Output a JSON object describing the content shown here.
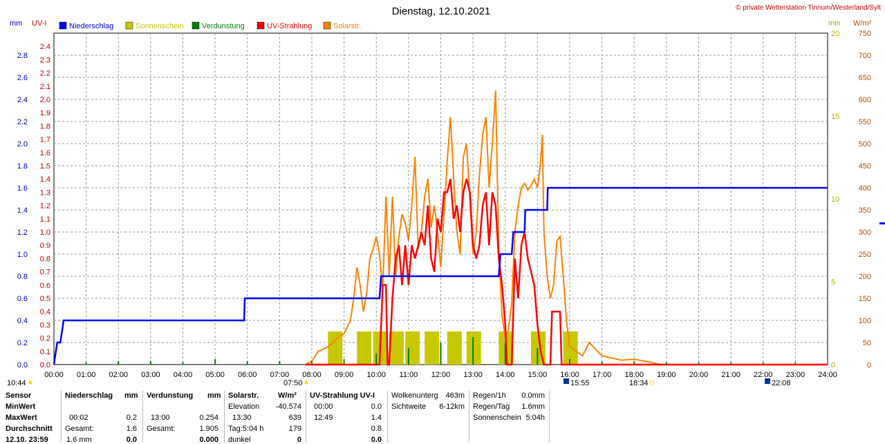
{
  "chart_data": {
    "type": "line",
    "title": "Dienstag, 12.10.2021",
    "copyright": "© private Wetterstation Tinnum/Westerland/Sylt",
    "left_axis_units": [
      "mm",
      "UV-I"
    ],
    "right_axis_units": [
      "min",
      "W/m²"
    ],
    "legend": [
      "Niederschlag",
      "Sonnenschein",
      "Verdunstung",
      "UV-Strahlung",
      "Solarstr."
    ],
    "colors": {
      "Niederschlag": "#0000ff",
      "Sonnenschein": "#c8c800",
      "Verdunstung": "#008000",
      "UV-Strahlung": "#ff0000",
      "Solarstr.": "#ff8000",
      "uv_axis": "#c00000",
      "min_axis": "#c8c800",
      "w_axis": "#b05000"
    },
    "x_ticks": [
      "00:00",
      "01:00",
      "02:00",
      "03:00",
      "04:00",
      "05:00",
      "06:00",
      "07:00",
      "08:00",
      "09:00",
      "10:00",
      "11:00",
      "12:00",
      "13:00",
      "14:00",
      "15:00",
      "16:00",
      "17:00",
      "18:00",
      "19:00",
      "20:00",
      "21:00",
      "22:00",
      "23:00",
      "24:00"
    ],
    "mm_ticks": [
      "0.0",
      "0.2",
      "0.4",
      "0.6",
      "0.8",
      "1.0",
      "1.2",
      "1.4",
      "1.6",
      "1.8",
      "2.0",
      "2.2",
      "2.4",
      "2.6",
      "2.8"
    ],
    "uv_ticks": [
      "0.0",
      "0.1",
      "0.2",
      "0.3",
      "0.4",
      "0.5",
      "0.6",
      "0.7",
      "0.8",
      "0.9",
      "1.0",
      "1.1",
      "1.2",
      "1.3",
      "1.4",
      "1.5",
      "1.6",
      "1.7",
      "1.8",
      "1.9",
      "2.0",
      "2.1",
      "2.2",
      "2.3",
      "2.4"
    ],
    "min_ticks": [
      "0",
      "5",
      "10",
      "15",
      "20"
    ],
    "w_ticks": [
      "0",
      "50",
      "100",
      "150",
      "200",
      "250",
      "300",
      "350",
      "400",
      "450",
      "500",
      "550",
      "600",
      "650",
      "700",
      "750"
    ],
    "x_range_h": [
      0,
      24
    ],
    "mm_range": [
      0,
      3.0
    ],
    "uv_range": [
      0,
      2.5
    ],
    "min_range": [
      0,
      20
    ],
    "w_range": [
      0,
      750
    ],
    "grid": true,
    "niederschlag_mm": [
      [
        0,
        0
      ],
      [
        0.05,
        0.1
      ],
      [
        0.1,
        0.2
      ],
      [
        0.2,
        0.2
      ],
      [
        0.3,
        0.4
      ],
      [
        5.9,
        0.4
      ],
      [
        5.92,
        0.6
      ],
      [
        10.1,
        0.6
      ],
      [
        10.15,
        0.8
      ],
      [
        13.8,
        0.8
      ],
      [
        13.85,
        1.0
      ],
      [
        14.2,
        1.0
      ],
      [
        14.25,
        1.2
      ],
      [
        14.6,
        1.2
      ],
      [
        14.62,
        1.4
      ],
      [
        15.3,
        1.4
      ],
      [
        15.32,
        1.6
      ],
      [
        24,
        1.6
      ]
    ],
    "uv_strahlung": [
      [
        7.8,
        0
      ],
      [
        10.1,
        0
      ],
      [
        10.2,
        0.6
      ],
      [
        10.3,
        0.6
      ],
      [
        10.35,
        0
      ],
      [
        10.4,
        0
      ],
      [
        10.5,
        0.5
      ],
      [
        10.6,
        0.8
      ],
      [
        10.7,
        0.9
      ],
      [
        10.8,
        0.6
      ],
      [
        10.9,
        0.9
      ],
      [
        11.0,
        0.6
      ],
      [
        11.1,
        0.9
      ],
      [
        11.2,
        0.8
      ],
      [
        11.3,
        0.9
      ],
      [
        11.4,
        1.0
      ],
      [
        11.5,
        0.9
      ],
      [
        11.6,
        1.2
      ],
      [
        11.7,
        0.8
      ],
      [
        11.8,
        0.7
      ],
      [
        11.9,
        1.1
      ],
      [
        12.0,
        1.0
      ],
      [
        12.1,
        1.3
      ],
      [
        12.2,
        1.3
      ],
      [
        12.3,
        1.4
      ],
      [
        12.4,
        1.1
      ],
      [
        12.5,
        1.2
      ],
      [
        12.6,
        1.0
      ],
      [
        12.7,
        1.3
      ],
      [
        12.8,
        1.4
      ],
      [
        12.9,
        1.3
      ],
      [
        13.0,
        0.9
      ],
      [
        13.1,
        0.8
      ],
      [
        13.2,
        0.9
      ],
      [
        13.3,
        1.2
      ],
      [
        13.4,
        1.3
      ],
      [
        13.5,
        0.9
      ],
      [
        13.6,
        1.3
      ],
      [
        13.7,
        1.2
      ],
      [
        13.8,
        0.8
      ],
      [
        13.9,
        0.6
      ],
      [
        14.0,
        0.3
      ],
      [
        14.05,
        0
      ],
      [
        14.2,
        0
      ],
      [
        14.3,
        0.8
      ],
      [
        14.4,
        0.5
      ],
      [
        14.5,
        0.9
      ],
      [
        14.6,
        1.0
      ],
      [
        14.7,
        0.8
      ],
      [
        14.8,
        0.7
      ],
      [
        14.9,
        0.6
      ],
      [
        15.0,
        0.3
      ],
      [
        15.1,
        0.1
      ],
      [
        15.2,
        0
      ],
      [
        15.4,
        0
      ],
      [
        15.45,
        0.4
      ],
      [
        15.6,
        0.4
      ],
      [
        15.7,
        0.4
      ],
      [
        15.75,
        0
      ],
      [
        24,
        0
      ]
    ],
    "solarstr_wm2": [
      [
        7.8,
        0
      ],
      [
        8.0,
        8
      ],
      [
        8.2,
        30
      ],
      [
        8.5,
        40
      ],
      [
        8.8,
        60
      ],
      [
        9.0,
        70
      ],
      [
        9.2,
        100
      ],
      [
        9.3,
        150
      ],
      [
        9.4,
        220
      ],
      [
        9.5,
        180
      ],
      [
        9.6,
        120
      ],
      [
        9.7,
        160
      ],
      [
        9.8,
        240
      ],
      [
        9.9,
        260
      ],
      [
        10.0,
        290
      ],
      [
        10.1,
        250
      ],
      [
        10.2,
        170
      ],
      [
        10.3,
        380
      ],
      [
        10.4,
        200
      ],
      [
        10.5,
        380
      ],
      [
        10.6,
        200
      ],
      [
        10.7,
        290
      ],
      [
        10.8,
        340
      ],
      [
        10.9,
        320
      ],
      [
        11.0,
        280
      ],
      [
        11.1,
        360
      ],
      [
        11.2,
        470
      ],
      [
        11.3,
        260
      ],
      [
        11.4,
        300
      ],
      [
        11.5,
        380
      ],
      [
        11.6,
        420
      ],
      [
        11.7,
        310
      ],
      [
        11.8,
        360
      ],
      [
        11.9,
        300
      ],
      [
        12.0,
        220
      ],
      [
        12.1,
        340
      ],
      [
        12.2,
        460
      ],
      [
        12.3,
        560
      ],
      [
        12.4,
        420
      ],
      [
        12.5,
        300
      ],
      [
        12.6,
        250
      ],
      [
        12.7,
        470
      ],
      [
        12.8,
        500
      ],
      [
        12.9,
        380
      ],
      [
        13.0,
        250
      ],
      [
        13.1,
        300
      ],
      [
        13.2,
        430
      ],
      [
        13.3,
        520
      ],
      [
        13.4,
        560
      ],
      [
        13.5,
        400
      ],
      [
        13.6,
        500
      ],
      [
        13.7,
        620
      ],
      [
        13.8,
        260
      ],
      [
        13.9,
        110
      ],
      [
        14.0,
        60
      ],
      [
        14.1,
        80
      ],
      [
        14.2,
        140
      ],
      [
        14.3,
        300
      ],
      [
        14.4,
        360
      ],
      [
        14.5,
        400
      ],
      [
        14.6,
        410
      ],
      [
        14.7,
        395
      ],
      [
        14.8,
        405
      ],
      [
        14.9,
        420
      ],
      [
        15.0,
        400
      ],
      [
        15.1,
        460
      ],
      [
        15.15,
        520
      ],
      [
        15.2,
        300
      ],
      [
        15.3,
        200
      ],
      [
        15.4,
        150
      ],
      [
        15.5,
        180
      ],
      [
        15.6,
        280
      ],
      [
        15.7,
        290
      ],
      [
        15.8,
        200
      ],
      [
        15.9,
        100
      ],
      [
        16.0,
        40
      ],
      [
        16.2,
        30
      ],
      [
        16.4,
        20
      ],
      [
        16.6,
        50
      ],
      [
        16.8,
        35
      ],
      [
        17.0,
        20
      ],
      [
        17.3,
        15
      ],
      [
        17.6,
        10
      ],
      [
        18.0,
        12
      ],
      [
        18.3,
        8
      ],
      [
        18.6,
        4
      ],
      [
        18.8,
        0
      ],
      [
        24,
        0
      ]
    ],
    "verdunstung_mm": [
      [
        1.0,
        0.02
      ],
      [
        2.0,
        0.03
      ],
      [
        3.0,
        0.03
      ],
      [
        4.0,
        0.02
      ],
      [
        5.0,
        0.05
      ],
      [
        6.0,
        0.03
      ],
      [
        7.0,
        0.03
      ],
      [
        8.0,
        0.03
      ],
      [
        9.0,
        0.05
      ],
      [
        10.0,
        0.1
      ],
      [
        11.0,
        0.15
      ],
      [
        12.0,
        0.2
      ],
      [
        13.0,
        0.25
      ],
      [
        14.0,
        0.2
      ],
      [
        15.0,
        0.15
      ],
      [
        16.0,
        0.05
      ],
      [
        17.0,
        0.03
      ],
      [
        18.0,
        0.03
      ],
      [
        19.0,
        0.02
      ],
      [
        20.0,
        0.02
      ],
      [
        21.0,
        0.02
      ],
      [
        22.0,
        0.02
      ],
      [
        23.0,
        0.02
      ]
    ],
    "sonnenschein_min": [
      [
        8.5,
        2
      ],
      [
        9.4,
        2
      ],
      [
        9.9,
        2
      ],
      [
        10.4,
        2
      ],
      [
        10.9,
        2
      ],
      [
        11.5,
        2
      ],
      [
        12.2,
        2
      ],
      [
        12.8,
        2
      ],
      [
        13.8,
        2
      ],
      [
        14.8,
        2
      ],
      [
        15.8,
        2
      ]
    ],
    "time_markers": {
      "start": "10:44",
      "sunrise": "07:50",
      "noon": "15:55",
      "sunset": "18:34",
      "end": "22:08"
    }
  },
  "table": {
    "rowlabels": [
      "Sensor",
      "MinWert",
      "MaxWert",
      "Durchschnitt",
      "12.10. 23:59"
    ],
    "niederschlag": {
      "head": "Niederschlag",
      "unit": "mm",
      "max_time": "00:02",
      "max_val": "0.2",
      "gesamt_lbl": "Gesamt:",
      "gesamt": "1.6",
      "last": "1.6 mm",
      "last_val": "0.0"
    },
    "verdunstung": {
      "head": "Verdunstung",
      "unit": "mm",
      "max_time": "13:00",
      "max_val": "0.254",
      "gesamt_lbl": "Gesamt:",
      "gesamt": "1.905",
      "last_val": "0.000"
    },
    "solar": {
      "head": "Solarstr.",
      "unit": "W/m²",
      "elev_lbl": "Elevation",
      "elev": "-40.574",
      "max_time": "13:30",
      "max_val": "639",
      "tag_lbl": "Tag:5:04 h",
      "tag_val": "179",
      "dunkel_lbl": "dunkel",
      "dunkel_val": "0"
    },
    "uv": {
      "head": "UV-Strahlung UV-I",
      "min_time": "00:00",
      "min_val": "0.0",
      "max_time": "12:49",
      "max_val": "1.4",
      "avg": "0.8",
      "last": "0.0"
    },
    "wolken": {
      "l1": "Wolkenunterg",
      "v1": "463m",
      "l2": "Sichtweite",
      "v2": "6-12km"
    },
    "regen": {
      "l1": "Regen/1h",
      "v1": "0.0mm",
      "l2": "Regen/Tag",
      "v2": "1.6mm",
      "l3": "Sonnenschein",
      "v3": "5:04h"
    }
  }
}
